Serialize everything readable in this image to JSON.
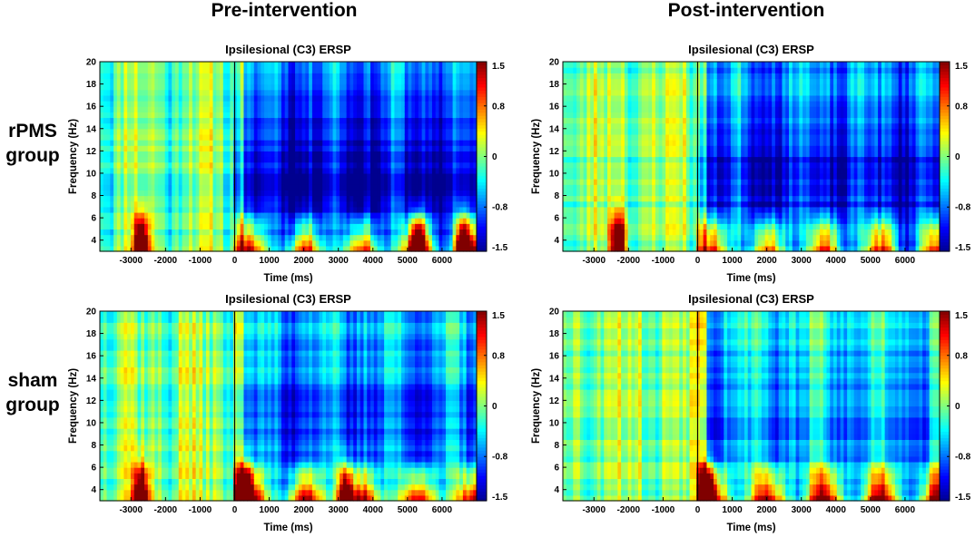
{
  "columns": {
    "left": "Pre-intervention",
    "right": "Post-intervention"
  },
  "rows": [
    {
      "line1": "rPMS",
      "line2": "group"
    },
    {
      "line1": "sham",
      "line2": "group"
    }
  ],
  "colormap": {
    "name": "jet",
    "stops": [
      "#00008f",
      "#0000ff",
      "#0080ff",
      "#00ffff",
      "#80ff80",
      "#ffff00",
      "#ff8000",
      "#ff0000",
      "#800000"
    ]
  },
  "chart_data": [
    {
      "type": "heatmap",
      "id": "rpms-pre",
      "title": "Ipsilesional (C3) ERSP",
      "xlabel": "Time (ms)",
      "ylabel": "Frequency (Hz)",
      "xlim": [
        -3900,
        7000
      ],
      "ylim": [
        3,
        20
      ],
      "x_ticks": [
        -3000,
        -2000,
        -1000,
        0,
        1000,
        2000,
        3000,
        4000,
        5000,
        6000
      ],
      "y_ticks": [
        4,
        6,
        8,
        10,
        12,
        14,
        16,
        18,
        20
      ],
      "colorbar": {
        "range": [
          -1.5,
          1.5
        ],
        "ticks": [
          -1.5,
          -0.8,
          0,
          0.8,
          1.5
        ],
        "tick_labels": [
          "-1.5",
          "-0.8",
          "0",
          "0.8",
          "1.5"
        ]
      },
      "pattern": {
        "pre_level": 0.0,
        "post_level": -1.1,
        "low_freq_hot_spots_ms": [
          -2700,
          5300,
          6600
        ],
        "seed": 11
      }
    },
    {
      "type": "heatmap",
      "id": "rpms-post",
      "title": "Ipsilesional (C3) ERSP",
      "xlabel": "Time (ms)",
      "ylabel": "Frequency (Hz)",
      "xlim": [
        -3900,
        7000
      ],
      "ylim": [
        3,
        20
      ],
      "x_ticks": [
        -3000,
        -2000,
        -1000,
        0,
        1000,
        2000,
        3000,
        4000,
        5000,
        6000
      ],
      "y_ticks": [
        4,
        6,
        8,
        10,
        12,
        14,
        16,
        18,
        20
      ],
      "colorbar": {
        "range": [
          -1.5,
          1.5
        ],
        "ticks": [
          -1.5,
          -0.8,
          0,
          0.8,
          1.5
        ],
        "tick_labels": [
          "-1.5",
          "-0.8",
          "0",
          "0.8",
          "1.5"
        ]
      },
      "pattern": {
        "pre_level": 0.05,
        "post_level": -1.0,
        "low_freq_hot_spots_ms": [
          -2300
        ],
        "seed": 23
      }
    },
    {
      "type": "heatmap",
      "id": "sham-pre",
      "title": "Ipsilesional (C3) ERSP",
      "xlabel": "Time (ms)",
      "ylabel": "Frequency (Hz)",
      "xlim": [
        -3900,
        7000
      ],
      "ylim": [
        3,
        20
      ],
      "x_ticks": [
        -3000,
        -2000,
        -1000,
        0,
        1000,
        2000,
        3000,
        4000,
        5000,
        6000
      ],
      "y_ticks": [
        4,
        6,
        8,
        10,
        12,
        14,
        16,
        18,
        20
      ],
      "colorbar": {
        "range": [
          -1.5,
          1.5
        ],
        "ticks": [
          -1.5,
          -0.8,
          0,
          0.8,
          1.5
        ],
        "tick_labels": [
          "-1.5",
          "-0.8",
          "0",
          "0.8",
          "1.5"
        ]
      },
      "pattern": {
        "pre_level": 0.05,
        "post_level": -0.75,
        "low_freq_hot_spots_ms": [
          -2700,
          300,
          3200
        ],
        "seed": 37
      }
    },
    {
      "type": "heatmap",
      "id": "sham-post",
      "title": "Ipsilesional (C3) ERSP",
      "xlabel": "Time (ms)",
      "ylabel": "Frequency (Hz)",
      "xlim": [
        -3900,
        7000
      ],
      "ylim": [
        3,
        20
      ],
      "x_ticks": [
        -3000,
        -2000,
        -1000,
        0,
        1000,
        2000,
        3000,
        4000,
        5000,
        6000
      ],
      "y_ticks": [
        4,
        6,
        8,
        10,
        12,
        14,
        16,
        18,
        20
      ],
      "colorbar": {
        "range": [
          -1.5,
          1.5
        ],
        "ticks": [
          -1.5,
          -0.8,
          0,
          0.8,
          1.5
        ],
        "tick_labels": [
          "-1.5",
          "-0.8",
          "0",
          "0.8",
          "1.5"
        ]
      },
      "pattern": {
        "pre_level": 0.1,
        "post_level": -0.55,
        "low_freq_hot_spots_ms": [
          300
        ],
        "seed": 53
      }
    }
  ]
}
